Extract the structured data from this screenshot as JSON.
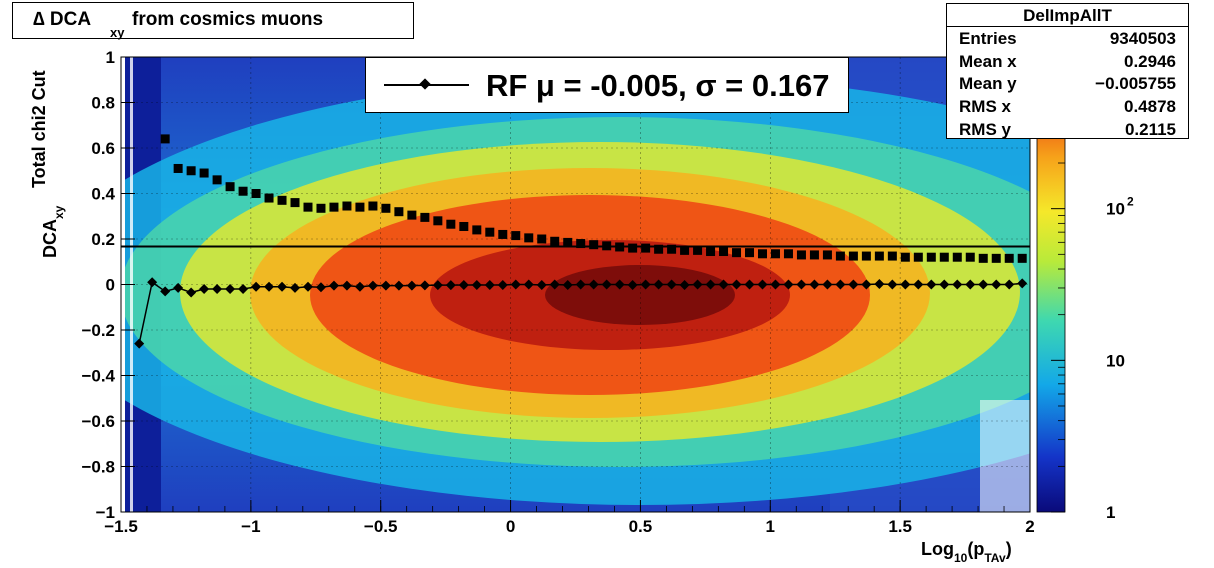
{
  "title": {
    "prefix": "∆ DCA",
    "sub": "xy",
    "rest": "from cosmics muons"
  },
  "stats": {
    "name": "DelImpAllT",
    "rows": [
      {
        "k": "Entries",
        "v": "9340503"
      },
      {
        "k": "Mean x",
        "v": "0.2946"
      },
      {
        "k": "Mean y",
        "v": "−0.005755"
      },
      {
        "k": "RMS x",
        "v": "0.4878"
      },
      {
        "k": "RMS y",
        "v": "0.2115"
      }
    ]
  },
  "legend": {
    "text": "RF μ = -0.005, σ =   0.167"
  },
  "axes": {
    "ylabel_main": "DCA",
    "ylabel_sub": "xy",
    "ylabel_top": "Total chi2 Cut",
    "xlabel_main": "Log",
    "xlabel_sub": "10",
    "xlabel_mid": "(p",
    "xlabel_sub2": "TAv",
    "xlabel_end": ")"
  },
  "colors": {
    "line": "#000000",
    "background": "#ffffff"
  },
  "chart_data": {
    "type": "heatmap",
    "xlim": [
      -1.5,
      2
    ],
    "ylim": [
      -1,
      1
    ],
    "x_ticks": [
      -1.5,
      -1,
      -0.5,
      0,
      0.5,
      1,
      1.5,
      2
    ],
    "x_tick_labels": [
      "−1.5",
      "−1",
      "−0.5",
      "0",
      "0.5",
      "1",
      "1.5",
      "2"
    ],
    "y_ticks": [
      -1,
      -0.8,
      -0.6,
      -0.4,
      -0.2,
      0,
      0.2,
      0.4,
      0.6,
      0.8,
      1
    ],
    "y_tick_labels": [
      "−1",
      "−0.8",
      "−0.6",
      "−0.4",
      "−0.2",
      "0",
      "0.2",
      "0.4",
      "0.6",
      "0.8",
      "1"
    ],
    "z_scale": "log",
    "z_ticks": [
      {
        "value": 1,
        "label": "1"
      },
      {
        "value": 10,
        "label": "10"
      },
      {
        "value": 100,
        "label": "10",
        "exp": "2"
      }
    ],
    "grid": true,
    "reference_line_y": 0.167,
    "mean_series": {
      "marker": "diamond",
      "x": [
        -1.43,
        -1.38,
        -1.33,
        -1.28,
        -1.23,
        -1.18,
        -1.13,
        -1.08,
        -1.03,
        -0.98,
        -0.93,
        -0.88,
        -0.83,
        -0.78,
        -0.73,
        -0.68,
        -0.63,
        -0.58,
        -0.53,
        -0.48,
        -0.43,
        -0.38,
        -0.33,
        -0.28,
        -0.23,
        -0.18,
        -0.13,
        -0.08,
        -0.03,
        0.02,
        0.07,
        0.12,
        0.17,
        0.22,
        0.27,
        0.32,
        0.37,
        0.42,
        0.47,
        0.52,
        0.57,
        0.62,
        0.67,
        0.72,
        0.77,
        0.82,
        0.87,
        0.92,
        0.97,
        1.02,
        1.07,
        1.12,
        1.17,
        1.22,
        1.27,
        1.32,
        1.37,
        1.42,
        1.47,
        1.52,
        1.57,
        1.62,
        1.67,
        1.72,
        1.77,
        1.82,
        1.87,
        1.92,
        1.97
      ],
      "y": [
        -0.26,
        0.01,
        -0.03,
        -0.015,
        -0.035,
        -0.02,
        -0.02,
        -0.02,
        -0.02,
        -0.01,
        -0.01,
        -0.01,
        -0.015,
        -0.01,
        -0.012,
        -0.005,
        -0.005,
        -0.01,
        -0.005,
        -0.005,
        -0.005,
        -0.005,
        -0.004,
        -0.003,
        -0.003,
        -0.002,
        -0.002,
        -0.002,
        -0.002,
        0.0,
        0.0,
        -0.002,
        0.0,
        -0.002,
        0.0,
        0.0,
        0.0,
        0.0,
        -0.002,
        0.0,
        0.0,
        0.0,
        -0.002,
        0.0,
        0.0,
        0.0,
        0.0,
        0.0,
        0.0,
        0.0,
        0.0,
        0.0,
        0.0,
        0.0,
        0.0,
        0.0,
        0.0,
        0.002,
        0.0,
        0.0,
        0.0,
        0.0,
        0.0,
        0.0,
        0.0,
        0.0,
        0.0,
        0.0,
        0.005
      ]
    },
    "sigma_series": {
      "marker": "square",
      "x": [
        -1.33,
        -1.28,
        -1.23,
        -1.18,
        -1.13,
        -1.08,
        -1.03,
        -0.98,
        -0.93,
        -0.88,
        -0.83,
        -0.78,
        -0.73,
        -0.68,
        -0.63,
        -0.58,
        -0.53,
        -0.48,
        -0.43,
        -0.38,
        -0.33,
        -0.28,
        -0.23,
        -0.18,
        -0.13,
        -0.08,
        -0.03,
        0.02,
        0.07,
        0.12,
        0.17,
        0.22,
        0.27,
        0.32,
        0.37,
        0.42,
        0.47,
        0.52,
        0.57,
        0.62,
        0.67,
        0.72,
        0.77,
        0.82,
        0.87,
        0.92,
        0.97,
        1.02,
        1.07,
        1.12,
        1.17,
        1.22,
        1.27,
        1.32,
        1.37,
        1.42,
        1.47,
        1.52,
        1.57,
        1.62,
        1.67,
        1.72,
        1.77,
        1.82,
        1.87,
        1.92,
        1.97
      ],
      "y": [
        0.64,
        0.51,
        0.5,
        0.49,
        0.46,
        0.43,
        0.41,
        0.4,
        0.38,
        0.37,
        0.36,
        0.34,
        0.335,
        0.34,
        0.345,
        0.34,
        0.345,
        0.335,
        0.32,
        0.305,
        0.295,
        0.28,
        0.265,
        0.255,
        0.24,
        0.23,
        0.22,
        0.215,
        0.205,
        0.2,
        0.19,
        0.185,
        0.18,
        0.175,
        0.17,
        0.165,
        0.16,
        0.16,
        0.155,
        0.155,
        0.15,
        0.15,
        0.145,
        0.145,
        0.14,
        0.14,
        0.135,
        0.135,
        0.135,
        0.13,
        0.13,
        0.13,
        0.125,
        0.125,
        0.125,
        0.125,
        0.125,
        0.12,
        0.12,
        0.12,
        0.12,
        0.12,
        0.12,
        0.115,
        0.115,
        0.115,
        0.115
      ]
    }
  }
}
